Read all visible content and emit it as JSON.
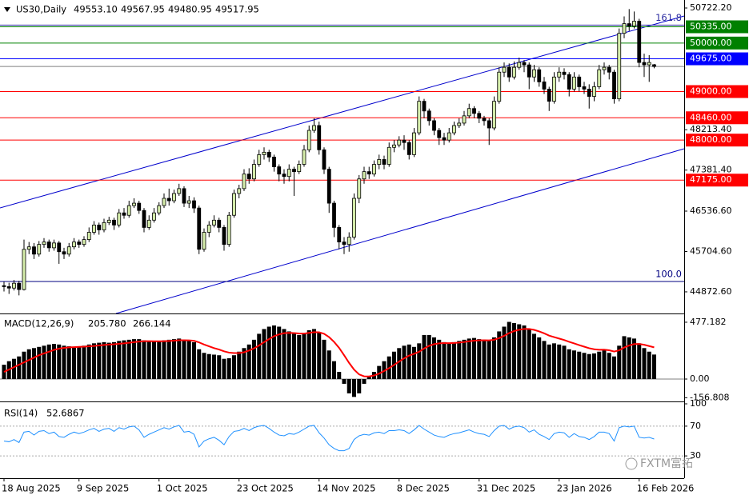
{
  "chart_data": [
    {
      "type": "candlestick",
      "title": "US30,Daily",
      "ohlc": [
        {
          "value": 49553.1,
          "label": "49553.10"
        },
        {
          "value": 49567.95,
          "label": "49567.95"
        },
        {
          "value": 49480.95,
          "label": "49480.95"
        },
        {
          "value": 49517.95,
          "label": "49517.95"
        }
      ],
      "categories": [
        "18 Aug 2025",
        null,
        null,
        null,
        null,
        null,
        null,
        null,
        null,
        null,
        null,
        null,
        null,
        null,
        null,
        "9 Sep 2025",
        null,
        null,
        null,
        null,
        null,
        null,
        null,
        null,
        null,
        null,
        null,
        null,
        null,
        null,
        null,
        "1 Oct 2025",
        null,
        null,
        null,
        null,
        null,
        null,
        null,
        null,
        null,
        null,
        null,
        null,
        null,
        null,
        null,
        "23 Oct 2025",
        null,
        null,
        null,
        null,
        null,
        null,
        null,
        null,
        null,
        null,
        null,
        null,
        null,
        null,
        null,
        "14 Nov 2025",
        null,
        null,
        null,
        null,
        null,
        null,
        null,
        null,
        null,
        null,
        null,
        null,
        null,
        null,
        null,
        "8 Dec 2025",
        null,
        null,
        null,
        null,
        null,
        null,
        null,
        null,
        null,
        null,
        null,
        null,
        null,
        null,
        null,
        "31 Dec 2025",
        null,
        null,
        null,
        null,
        null,
        null,
        null,
        null,
        null,
        null,
        null,
        null,
        null,
        null,
        null,
        "23 Jan 2026",
        null,
        null,
        null,
        null,
        null,
        null,
        null,
        null,
        null,
        null,
        null,
        null,
        null,
        null,
        null,
        "16 Feb 2026",
        null,
        null,
        null
      ],
      "open": [
        45000,
        44980,
        44950,
        45050,
        44920,
        45750,
        45800,
        45650,
        45850,
        45900,
        45780,
        45880,
        45700,
        45650,
        45800,
        45900,
        45850,
        45950,
        46100,
        46250,
        46150,
        46300,
        46350,
        46250,
        46500,
        46450,
        46650,
        46700,
        46550,
        46200,
        46350,
        46500,
        46650,
        46800,
        46750,
        46900,
        47000,
        46700,
        46750,
        46600,
        45750,
        46100,
        46250,
        46350,
        46200,
        45850,
        46450,
        46900,
        47000,
        47300,
        47200,
        47500,
        47700,
        47750,
        47650,
        47450,
        47300,
        47250,
        47400,
        47350,
        47500,
        47800,
        48200,
        48300,
        47800,
        47400,
        46700,
        46200,
        45900,
        45850,
        46000,
        46800,
        47200,
        47350,
        47300,
        47500,
        47600,
        47500,
        47850,
        47900,
        48000,
        47950,
        47700,
        48150,
        48800,
        48600,
        48400,
        48200,
        48050,
        48000,
        48150,
        48300,
        48350,
        48500,
        48650,
        48550,
        48450,
        48400,
        48250,
        48800,
        49400,
        49500,
        49300,
        49500,
        49600,
        49550,
        49300,
        49450,
        49200,
        49050,
        48800,
        49300,
        49400,
        49350,
        49050,
        49300,
        49100,
        49050,
        48900,
        49100,
        49450,
        49500,
        49400,
        48850,
        50200,
        50400,
        50350,
        50450,
        49600,
        49550,
        49553.1
      ],
      "high": [
        45080,
        45060,
        45120,
        45100,
        45950,
        45900,
        45880,
        45920,
        45980,
        45950,
        45950,
        45920,
        45780,
        45880,
        45980,
        45950,
        46020,
        46200,
        46330,
        46300,
        46380,
        46420,
        46400,
        46580,
        46600,
        46750,
        46800,
        46750,
        46600,
        46450,
        46600,
        46720,
        46900,
        47000,
        46980,
        47100,
        47050,
        46850,
        46820,
        46650,
        46180,
        46330,
        46450,
        46400,
        46250,
        46520,
        46980,
        47080,
        47400,
        47420,
        47600,
        47800,
        47850,
        47800,
        47700,
        47500,
        47400,
        47500,
        47450,
        47580,
        47900,
        48300,
        48450,
        48380,
        47850,
        47450,
        46750,
        46250,
        46000,
        46100,
        46900,
        47280,
        47450,
        47450,
        47580,
        47700,
        47680,
        47950,
        48000,
        48080,
        48100,
        48000,
        48250,
        48900,
        48850,
        48650,
        48450,
        48250,
        48150,
        48250,
        48380,
        48450,
        48600,
        48750,
        48700,
        48600,
        48500,
        48450,
        48900,
        49500,
        49600,
        49580,
        49620,
        49700,
        49650,
        49600,
        49550,
        49500,
        49300,
        49100,
        49400,
        49500,
        49480,
        49400,
        49400,
        49350,
        49200,
        49150,
        49200,
        49550,
        49600,
        49550,
        49450,
        50300,
        50550,
        50700,
        50650,
        50500,
        49780,
        49750,
        49567.95
      ],
      "low": [
        44880,
        44830,
        44900,
        44800,
        44900,
        45650,
        45550,
        45600,
        45780,
        45700,
        45720,
        45450,
        45550,
        45600,
        45750,
        45780,
        45800,
        45900,
        46050,
        46050,
        46100,
        46250,
        46150,
        46200,
        46380,
        46400,
        46600,
        46480,
        46100,
        46150,
        46300,
        46450,
        46600,
        46650,
        46700,
        46850,
        46620,
        46600,
        46500,
        45650,
        45700,
        46000,
        46200,
        46100,
        45720,
        45800,
        46400,
        46800,
        46950,
        47100,
        47150,
        47450,
        47600,
        47550,
        47350,
        47150,
        47100,
        47150,
        46850,
        47300,
        47450,
        47750,
        48150,
        47700,
        47300,
        46500,
        46000,
        45750,
        45650,
        45700,
        45950,
        46700,
        47100,
        47200,
        47250,
        47400,
        47400,
        47450,
        47750,
        47850,
        47800,
        47600,
        47650,
        48100,
        48450,
        48300,
        48100,
        47900,
        47900,
        47950,
        48100,
        48250,
        48300,
        48450,
        48450,
        48350,
        48300,
        47900,
        48200,
        48750,
        49300,
        49200,
        49250,
        49450,
        49400,
        49050,
        49200,
        49100,
        48950,
        48600,
        48750,
        49200,
        49250,
        48900,
        49000,
        49000,
        48950,
        48650,
        48800,
        49050,
        49350,
        49250,
        48750,
        48800,
        50100,
        50250,
        50300,
        49500,
        49300,
        49200,
        49480.95
      ],
      "close": [
        44980,
        44950,
        45050,
        44920,
        45750,
        45800,
        45650,
        45850,
        45900,
        45780,
        45880,
        45700,
        45650,
        45800,
        45900,
        45850,
        45950,
        46100,
        46250,
        46150,
        46300,
        46350,
        46250,
        46500,
        46450,
        46650,
        46700,
        46550,
        46200,
        46350,
        46500,
        46650,
        46800,
        46750,
        46900,
        47000,
        46700,
        46750,
        46600,
        45750,
        46100,
        46250,
        46350,
        46200,
        45850,
        46450,
        46900,
        47000,
        47300,
        47200,
        47500,
        47700,
        47750,
        47650,
        47450,
        47300,
        47250,
        47400,
        47350,
        47500,
        47800,
        48200,
        48300,
        47800,
        47400,
        46700,
        46200,
        45900,
        45850,
        46000,
        46800,
        47200,
        47350,
        47300,
        47500,
        47600,
        47500,
        47850,
        47900,
        48000,
        47950,
        47700,
        48150,
        48800,
        48600,
        48400,
        48200,
        48050,
        48000,
        48150,
        48300,
        48350,
        48500,
        48650,
        48550,
        48450,
        48400,
        48250,
        48800,
        49400,
        49500,
        49300,
        49500,
        49600,
        49550,
        49300,
        49450,
        49200,
        49050,
        48800,
        49300,
        49400,
        49350,
        49050,
        49300,
        49100,
        49050,
        48900,
        49100,
        49450,
        49500,
        49400,
        48850,
        50200,
        50400,
        50350,
        50450,
        49600,
        49550,
        49600,
        49517.95
      ],
      "up_color": "#d4ecaa",
      "down_color": "#000000",
      "wick_color": "#000000",
      "ylim": [
        44427,
        50887
      ],
      "yticks": [
        {
          "value": 50722.2,
          "label": "50722.20"
        },
        {
          "value": 48213.4,
          "label": "48213.40"
        },
        {
          "value": 47381.4,
          "label": "47381.40"
        },
        {
          "value": 46536.6,
          "label": "46536.60"
        },
        {
          "value": 45704.6,
          "label": "45704.60"
        },
        {
          "value": 44872.6,
          "label": "44872.60"
        }
      ],
      "levels": [
        {
          "value": 50335,
          "label": "50335.00",
          "color": "#008000"
        },
        {
          "value": 50000,
          "label": "50000.00",
          "color": "#008000"
        },
        {
          "value": 49675,
          "label": "49675.00",
          "color": "#0000ff"
        },
        {
          "value": 49000,
          "label": "49000.00",
          "color": "#ff0000"
        },
        {
          "value": 48460,
          "label": "48460.00",
          "color": "#ff0000"
        },
        {
          "value": 48000,
          "label": "48000.00",
          "color": "#ff0000"
        },
        {
          "value": 47175,
          "label": "47175.00",
          "color": "#ff0000"
        }
      ],
      "fibo_levels": [
        {
          "label": "161.8",
          "price": 50370,
          "color": "#2a2aa0"
        },
        {
          "label": "100.0",
          "price": 45086,
          "color": "#000080"
        }
      ]
    },
    {
      "type": "macd",
      "title": "MACD(12,26,9)",
      "current": [
        {
          "value": 205.78,
          "label": "205.780"
        },
        266.144
      ],
      "histogram": {
        "color": "#000000",
        "values": [
          120,
          150,
          170,
          190,
          230,
          250,
          260,
          270,
          280,
          290,
          295,
          290,
          280,
          275,
          270,
          275,
          280,
          290,
          300,
          305,
          310,
          305,
          310,
          320,
          325,
          330,
          335,
          335,
          325,
          315,
          315,
          320,
          325,
          330,
          335,
          340,
          330,
          320,
          310,
          250,
          220,
          210,
          205,
          200,
          170,
          175,
          200,
          230,
          260,
          290,
          330,
          380,
          420,
          440,
          450,
          440,
          420,
          400,
          380,
          370,
          380,
          410,
          420,
          390,
          330,
          240,
          150,
          60,
          -40,
          -120,
          -150,
          -120,
          -40,
          20,
          60,
          110,
          150,
          190,
          230,
          260,
          280,
          290,
          270,
          300,
          370,
          370,
          350,
          330,
          310,
          300,
          310,
          320,
          330,
          340,
          345,
          335,
          330,
          320,
          350,
          400,
          440,
          480,
          470,
          460,
          450,
          420,
          380,
          350,
          320,
          290,
          300,
          290,
          280,
          250,
          240,
          230,
          220,
          210,
          215,
          230,
          250,
          220,
          190,
          280,
          360,
          350,
          340,
          300,
          260,
          230,
          205.78
        ]
      },
      "signal": {
        "color": "#ff0000",
        "values": [
          60,
          80,
          100,
          120,
          140,
          160,
          180,
          200,
          215,
          230,
          245,
          255,
          262,
          266,
          268,
          270,
          272,
          275,
          278,
          282,
          286,
          290,
          292,
          296,
          300,
          305,
          310,
          315,
          318,
          318,
          317,
          317,
          318,
          320,
          322,
          326,
          326,
          325,
          322,
          308,
          290,
          275,
          260,
          248,
          233,
          222,
          218,
          218,
          225,
          240,
          258,
          282,
          310,
          336,
          360,
          375,
          385,
          388,
          386,
          383,
          382,
          388,
          394,
          393,
          380,
          352,
          312,
          262,
          200,
          136,
          79,
          39,
          23,
          22,
          30,
          46,
          67,
          92,
          119,
          147,
          174,
          197,
          212,
          229,
          257,
          279,
          293,
          300,
          302,
          301,
          303,
          306,
          311,
          317,
          322,
          325,
          326,
          325,
          330,
          344,
          363,
          386,
          403,
          414,
          421,
          421,
          413,
          400,
          384,
          365,
          352,
          340,
          328,
          313,
          299,
          285,
          272,
          259,
          250,
          246,
          247,
          242,
          231,
          241,
          265,
          282,
          294,
          295,
          288,
          277,
          266.144
        ]
      },
      "ylim": [
        -188,
        544
      ],
      "yticks": [
        477.182,
        {
          "value": 0,
          "label": "0.00"
        },
        -156.808
      ]
    },
    {
      "type": "rsi",
      "title": "RSI(14)",
      "current": 52.6867,
      "color": "#1e90ff",
      "values": [
        50,
        49,
        52,
        48,
        62,
        63,
        58,
        63,
        64,
        60,
        62,
        56,
        55,
        59,
        62,
        60,
        62,
        65,
        67,
        63,
        66,
        67,
        63,
        68,
        66,
        69,
        70,
        65,
        55,
        59,
        62,
        65,
        68,
        66,
        69,
        71,
        62,
        63,
        59,
        42,
        50,
        53,
        55,
        51,
        45,
        56,
        63,
        64,
        67,
        64,
        68,
        70,
        71,
        67,
        62,
        58,
        57,
        60,
        59,
        62,
        66,
        70,
        71,
        61,
        54,
        45,
        40,
        37,
        37,
        40,
        52,
        57,
        59,
        58,
        61,
        62,
        60,
        64,
        64,
        65,
        64,
        60,
        65,
        71,
        66,
        62,
        58,
        56,
        55,
        58,
        60,
        61,
        63,
        65,
        62,
        60,
        59,
        56,
        64,
        70,
        71,
        66,
        69,
        70,
        68,
        62,
        65,
        59,
        56,
        52,
        60,
        62,
        61,
        55,
        60,
        56,
        55,
        52,
        56,
        62,
        62,
        60,
        50,
        68,
        70,
        69,
        70,
        55,
        54,
        55,
        52.6867
      ],
      "ylim": [
        0,
        100
      ],
      "yticks": [
        100,
        70,
        30
      ],
      "levels": [
        70,
        30
      ]
    }
  ],
  "watermark": "FXTM富拓"
}
